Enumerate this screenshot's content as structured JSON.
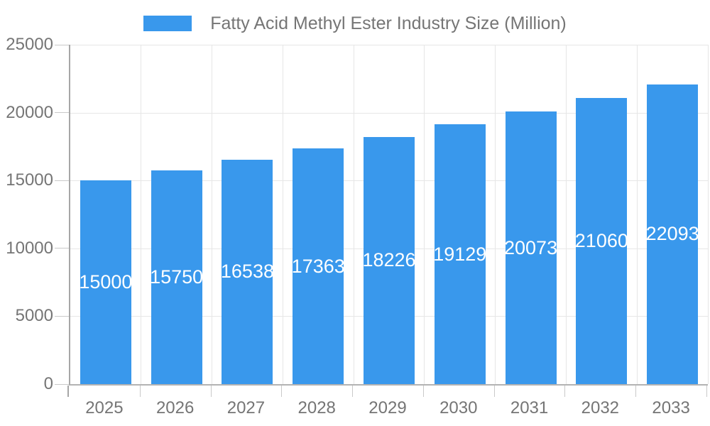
{
  "legend": {
    "label": "Fatty Acid Methyl Ester Industry Size (Million)"
  },
  "colors": {
    "bar": "#3998ec",
    "grid": "#e6e6e6",
    "axis_y": "#a6a6a6",
    "axis_x": "#b3b3b3",
    "tick": "#c9c9c9",
    "axis_text": "#757575",
    "value_text": "#ffffff",
    "background": "#ffffff"
  },
  "chart_data": {
    "type": "bar",
    "title": "Fatty Acid Methyl Ester Industry Size (Million)",
    "categories": [
      "2025",
      "2026",
      "2027",
      "2028",
      "2029",
      "2030",
      "2031",
      "2032",
      "2033"
    ],
    "series": [
      {
        "name": "Fatty Acid Methyl Ester Industry Size (Million)",
        "values": [
          15000,
          15750,
          16538,
          17363,
          18226,
          19129,
          20073,
          21060,
          22093
        ]
      }
    ],
    "value_labels": [
      "15000",
      "15750",
      "16538",
      "17363",
      "18226",
      "19129",
      "20073",
      "21060",
      "22093"
    ],
    "yticks": [
      0,
      5000,
      10000,
      15000,
      20000,
      25000
    ],
    "ytick_labels": [
      "0",
      "5000",
      "10000",
      "15000",
      "20000",
      "25000"
    ],
    "ylim": [
      0,
      25000
    ],
    "xlabel": "",
    "ylabel": "",
    "grid": true,
    "legend_position": "top",
    "value_label_position": "inside-center"
  }
}
